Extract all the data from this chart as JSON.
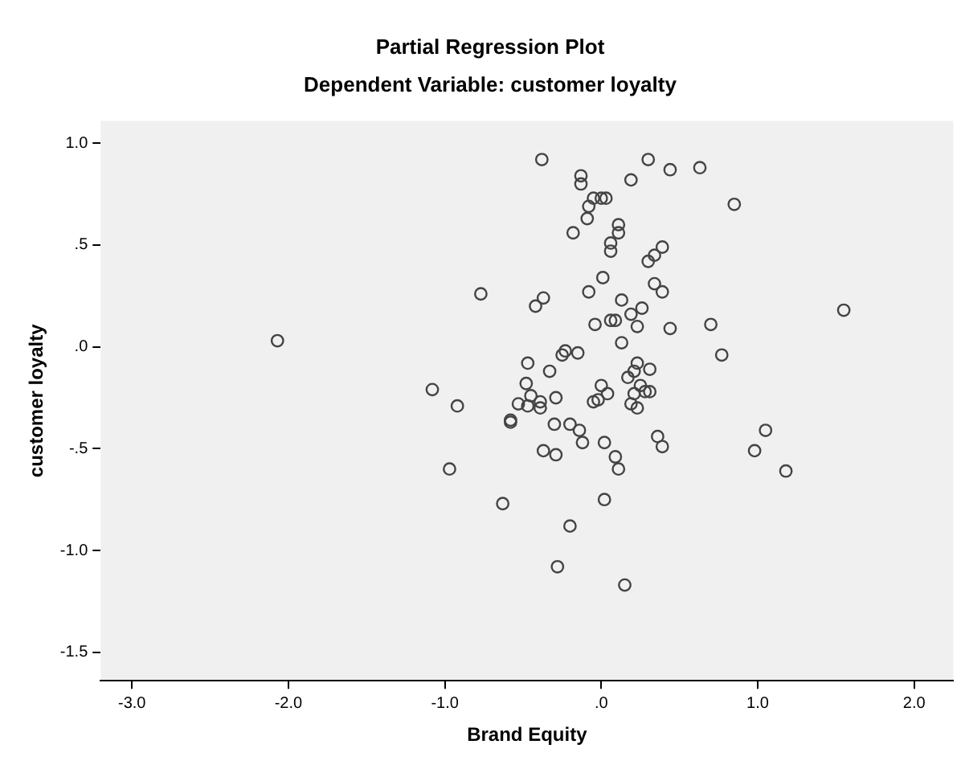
{
  "chart_data": {
    "type": "scatter",
    "title": "Partial Regression Plot",
    "subtitle": "Dependent Variable: customer loyalty",
    "xlabel": "Brand Equity",
    "ylabel": "customer loyalty",
    "xlim": [
      -3.2,
      2.25
    ],
    "ylim": [
      -1.64,
      1.11
    ],
    "xticks": [
      {
        "value": -3,
        "label": "-3.0"
      },
      {
        "value": -2,
        "label": "-2.0"
      },
      {
        "value": -1,
        "label": "-1.0"
      },
      {
        "value": 0,
        "label": ".0"
      },
      {
        "value": 1,
        "label": "1.0"
      },
      {
        "value": 2,
        "label": "2.0"
      }
    ],
    "yticks": [
      {
        "value": 1,
        "label": "1.0"
      },
      {
        "value": 0.5,
        "label": ".5"
      },
      {
        "value": 0,
        "label": ".0"
      },
      {
        "value": -0.5,
        "label": "-.5"
      },
      {
        "value": -1,
        "label": "-1.0"
      },
      {
        "value": -1.5,
        "label": "-1.5"
      }
    ],
    "marker": "circle",
    "grid": false,
    "legend": false,
    "series": [
      {
        "color": "#444444",
        "x": [
          -0.38,
          0.3,
          0.44,
          0.63,
          -0.13,
          -0.13,
          0.19,
          -0.05,
          0.0,
          0.03,
          -0.08,
          0.85,
          -0.09,
          0.11,
          0.11,
          -0.18,
          0.06,
          0.06,
          0.39,
          0.34,
          0.3,
          0.01,
          0.34,
          0.39,
          -0.08,
          -0.77,
          -0.37,
          -0.42,
          0.13,
          0.26,
          0.19,
          1.55,
          0.06,
          0.09,
          -0.04,
          0.23,
          0.44,
          0.7,
          -2.07,
          0.13,
          -0.23,
          -0.25,
          -0.15,
          0.77,
          -0.47,
          0.23,
          0.31,
          0.21,
          -0.33,
          0.17,
          -1.08,
          -0.48,
          0.0,
          0.25,
          0.28,
          0.31,
          0.21,
          0.04,
          -0.45,
          -0.29,
          -0.02,
          -0.05,
          -0.39,
          -0.53,
          -0.47,
          -0.39,
          0.19,
          0.23,
          -0.92,
          -0.58,
          -0.58,
          -0.3,
          -0.2,
          -0.14,
          0.36,
          1.05,
          -0.12,
          0.02,
          0.39,
          -0.37,
          -0.29,
          0.98,
          0.09,
          0.11,
          -0.97,
          1.18,
          0.02,
          -0.63,
          -0.2,
          -0.28,
          0.15
        ],
        "values": [
          0.92,
          0.92,
          0.87,
          0.88,
          0.84,
          0.8,
          0.82,
          0.73,
          0.73,
          0.73,
          0.69,
          0.7,
          0.63,
          0.6,
          0.56,
          0.56,
          0.51,
          0.47,
          0.49,
          0.45,
          0.42,
          0.34,
          0.31,
          0.27,
          0.27,
          0.26,
          0.24,
          0.2,
          0.23,
          0.19,
          0.16,
          0.18,
          0.13,
          0.13,
          0.11,
          0.1,
          0.09,
          0.11,
          0.03,
          0.02,
          -0.02,
          -0.04,
          -0.03,
          -0.04,
          -0.08,
          -0.08,
          -0.11,
          -0.12,
          -0.12,
          -0.15,
          -0.21,
          -0.18,
          -0.19,
          -0.19,
          -0.22,
          -0.22,
          -0.23,
          -0.23,
          -0.24,
          -0.25,
          -0.26,
          -0.27,
          -0.27,
          -0.28,
          -0.29,
          -0.3,
          -0.28,
          -0.3,
          -0.29,
          -0.36,
          -0.37,
          -0.38,
          -0.38,
          -0.41,
          -0.44,
          -0.41,
          -0.47,
          -0.47,
          -0.49,
          -0.51,
          -0.53,
          -0.51,
          -0.54,
          -0.6,
          -0.6,
          -0.61,
          -0.75,
          -0.77,
          -0.88,
          -1.08,
          -1.17
        ]
      }
    ]
  }
}
